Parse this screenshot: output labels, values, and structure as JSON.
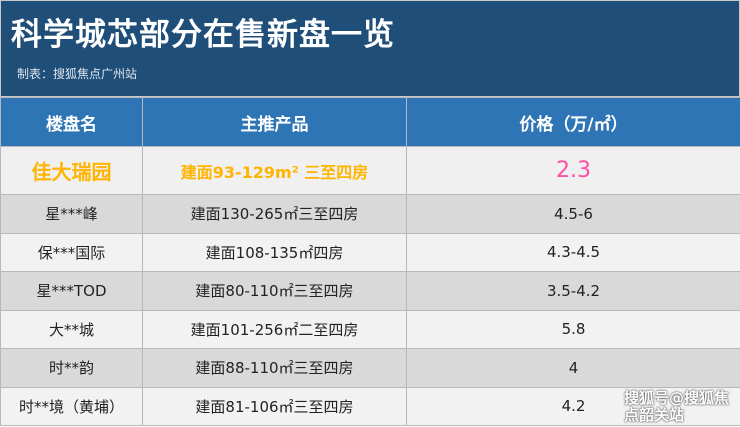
{
  "title": "科学城芯部分在售新盘一览",
  "subtitle": "制表：搜狐焦点广州站",
  "headers": [
    "楼盘名",
    "主推产品",
    "价格（万/㎡）"
  ],
  "rows": [
    {
      "name": "佳大瑞园",
      "product": "建面93-129m² 三至四房",
      "price": "2.3"
    },
    {
      "name": "星***峰",
      "product": "建面130-265㎡三至四房",
      "price": "4.5-6"
    },
    {
      "name": "保***国际",
      "product": "建面108-135㎡四房",
      "price": "4.3-4.5"
    },
    {
      "name": "星***TOD",
      "product": "建面80-110㎡三至四房",
      "price": "3.5-4.2"
    },
    {
      "name": "大**城",
      "product": "建面101-256㎡二至四房",
      "price": "5.8"
    },
    {
      "name": "时**韵",
      "product": "建面88-110㎡三至四房",
      "price": "4"
    },
    {
      "name": "时**境（黄埔）",
      "product": "建面81-106㎡三至四房",
      "price": "4.2"
    }
  ],
  "watermark": "搜狐号@搜狐焦点韶关站",
  "colors": {
    "title_bg": "#1f4e79",
    "header_bg": "#2e75b6",
    "highlight": "#ffb400",
    "price_highlight": "#ff4da6"
  }
}
